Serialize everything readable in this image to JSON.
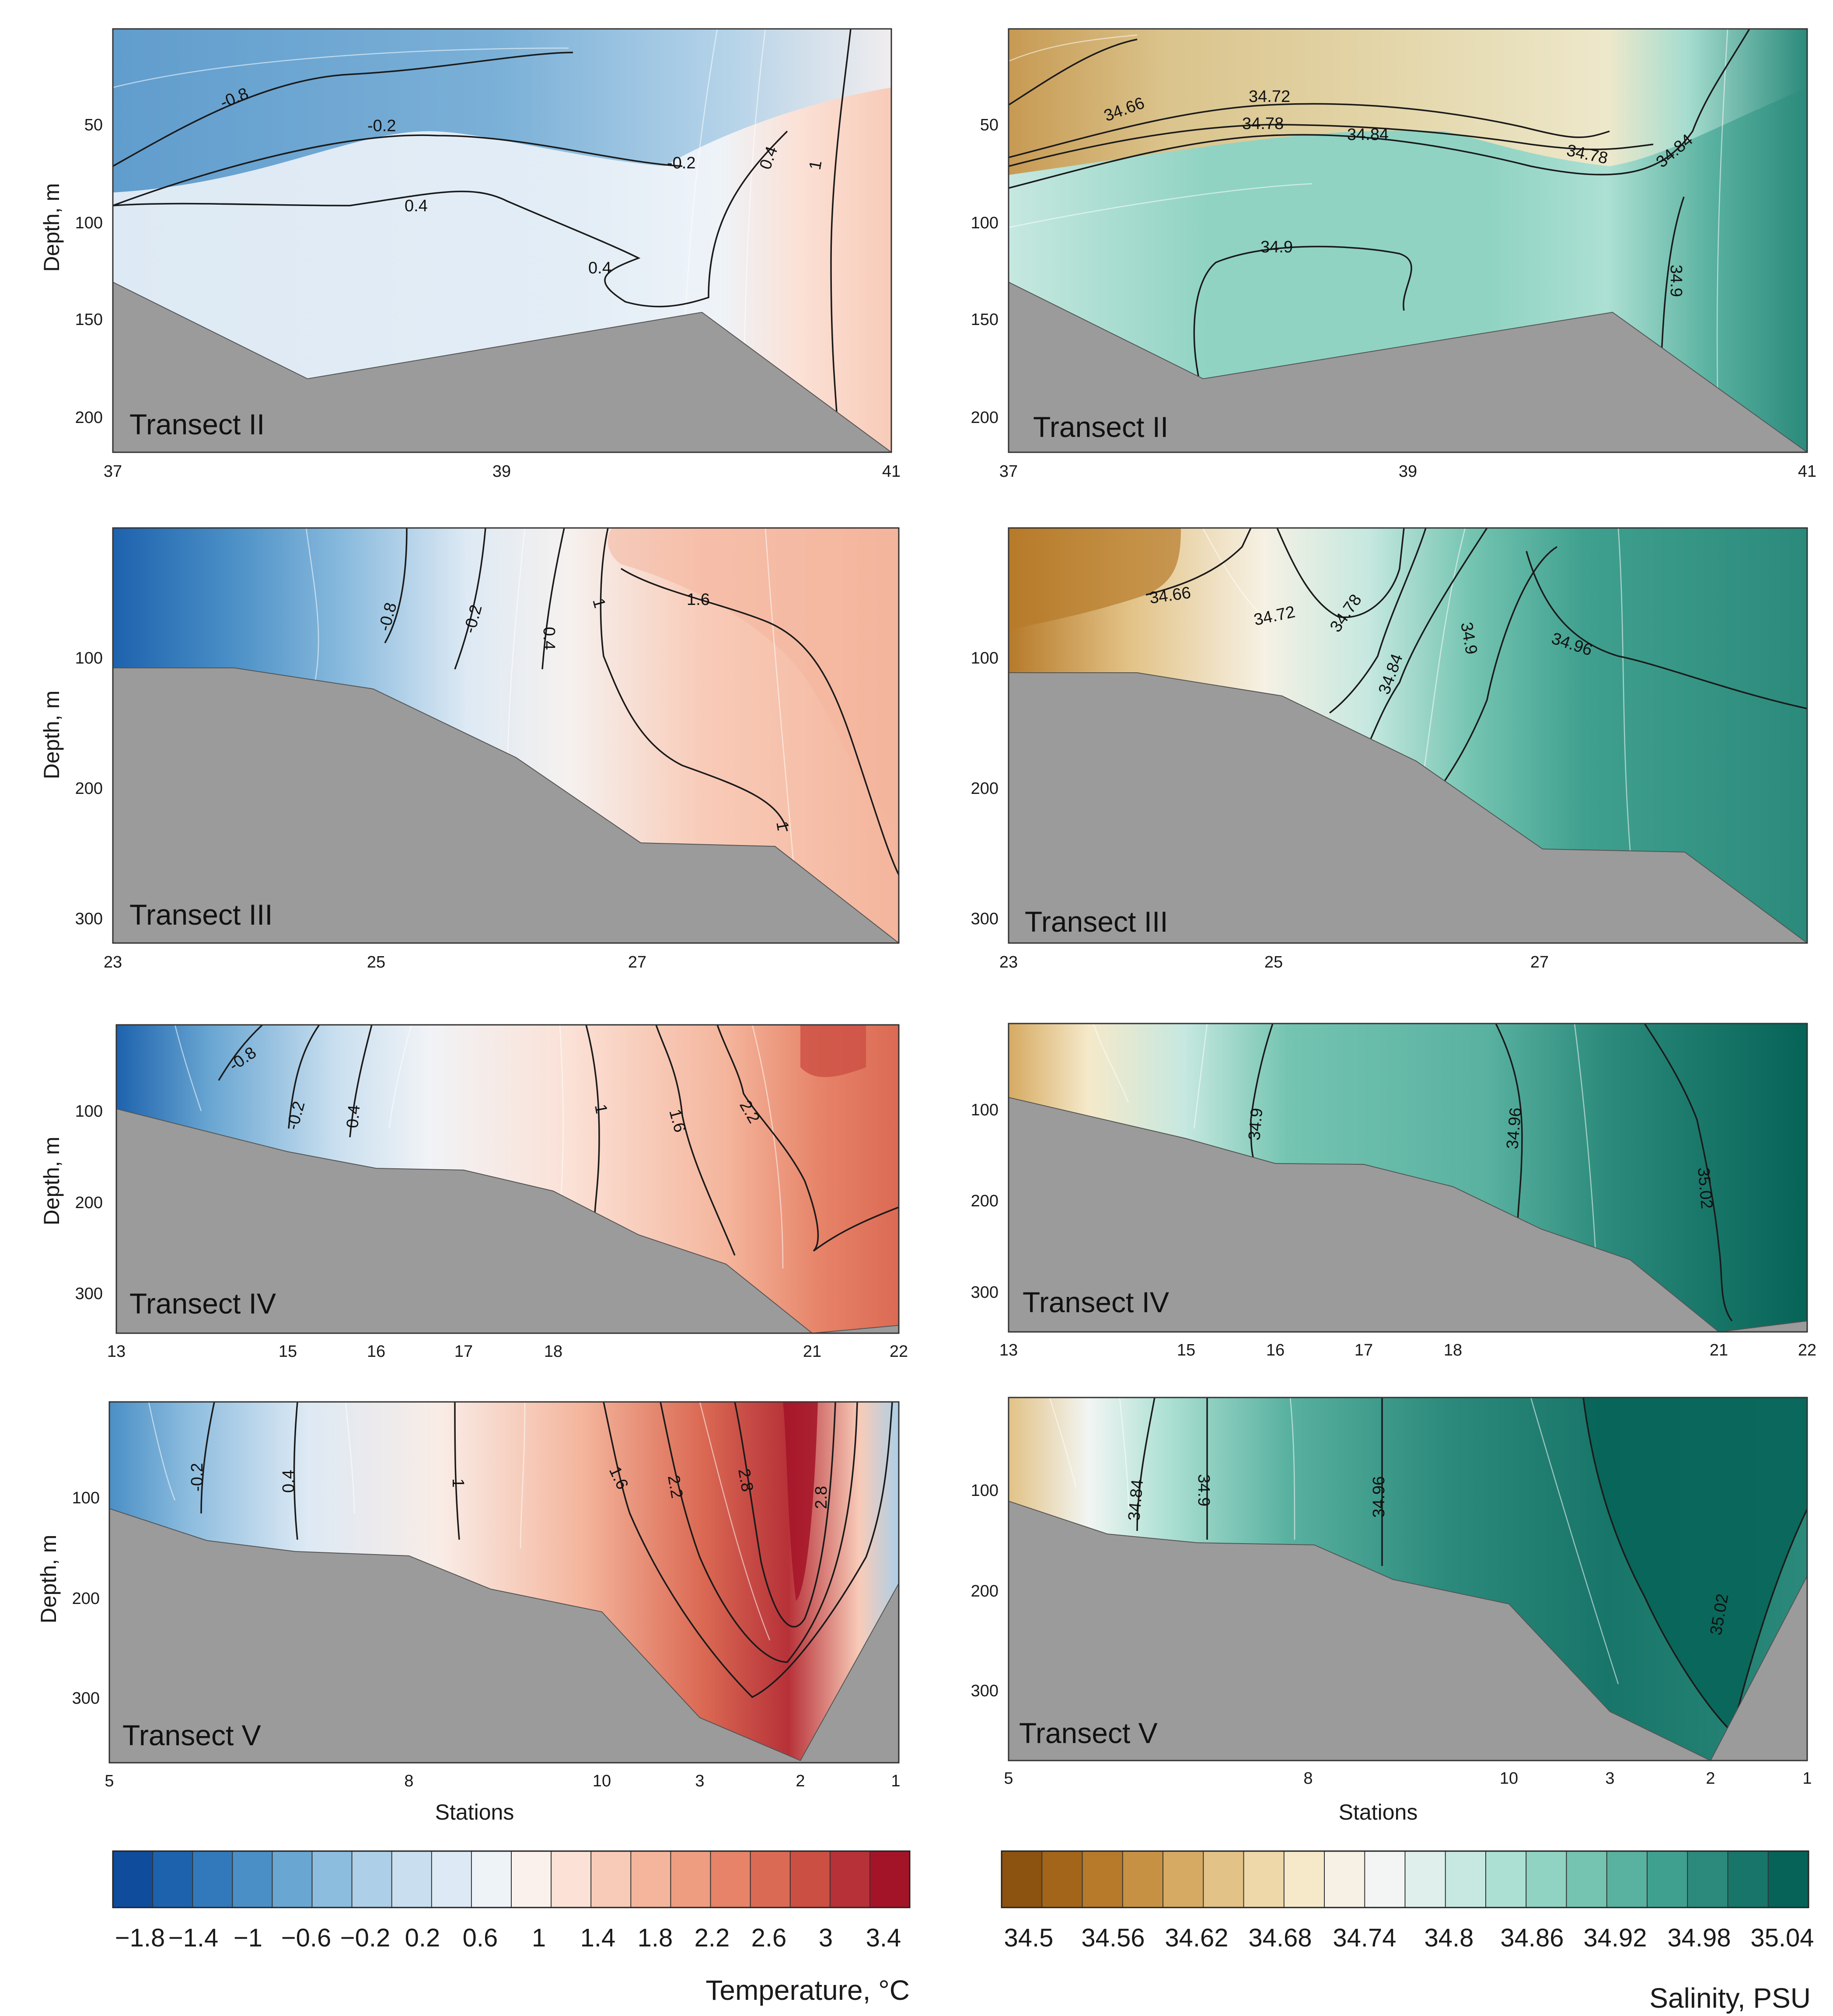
{
  "figure": {
    "type": "contour-section",
    "panels": 8
  },
  "colors": {
    "bathymetry": "#9b9b9b",
    "temperature_palette": [
      "#0f4c9c",
      "#1d62ad",
      "#3179bb",
      "#4a8fc6",
      "#69a6d2",
      "#8cbcde",
      "#adcfe7",
      "#c9dfef",
      "#dde9f4",
      "#eef3f8",
      "#fbf1ec",
      "#fbe1d6",
      "#f8cbb8",
      "#f4b59c",
      "#ee9d80",
      "#e68368",
      "#db6a54",
      "#cc4f43",
      "#b73138",
      "#a41428"
    ],
    "salinity_palette": [
      "#8c520f",
      "#a2651a",
      "#b67a2a",
      "#c79143",
      "#d6aa62",
      "#e2c286",
      "#eed8aa",
      "#f5e9ca",
      "#f6f1e4",
      "#f2f5f3",
      "#dff0ec",
      "#c6e8e0",
      "#ace0d3",
      "#90d3c3",
      "#74c4b1",
      "#59b1a0",
      "#40a08f",
      "#2b8a7b",
      "#187569",
      "#066357"
    ]
  },
  "chart_data": [
    {
      "id": "temp-II",
      "type": "contour",
      "variable": "Temperature",
      "transect": "Transect II",
      "ylabel": "Depth, m",
      "xlabel": "",
      "x_ticks": [
        "37",
        "39",
        "41"
      ],
      "y_ticks": [
        "50",
        "100",
        "150",
        "200"
      ],
      "ylim": [
        0,
        218
      ],
      "bottom_profile": [
        [
          37,
          130
        ],
        [
          38,
          180
        ],
        [
          40,
          146
        ],
        [
          41,
          220
        ]
      ],
      "contours": [
        {
          "label": "-0.8",
          "value": -0.8
        },
        {
          "label": "-0.2",
          "value": -0.2
        },
        {
          "label": "-0.2",
          "value": -0.2
        },
        {
          "label": "0.4",
          "value": 0.4
        },
        {
          "label": "0.4",
          "value": 0.4
        },
        {
          "label": "0.4",
          "value": 0.4
        },
        {
          "label": "1",
          "value": 1
        }
      ]
    },
    {
      "id": "sal-II",
      "type": "contour",
      "variable": "Salinity",
      "transect": "Transect II",
      "ylabel": "",
      "xlabel": "",
      "x_ticks": [
        "37",
        "39",
        "41"
      ],
      "y_ticks": [
        "50",
        "100",
        "150",
        "200"
      ],
      "ylim": [
        0,
        218
      ],
      "bottom_profile": [
        [
          37,
          130
        ],
        [
          38,
          180
        ],
        [
          40,
          146
        ],
        [
          41,
          220
        ]
      ],
      "contours": [
        {
          "label": "34.66",
          "value": 34.66
        },
        {
          "label": "34.72",
          "value": 34.72
        },
        {
          "label": "34.78",
          "value": 34.78
        },
        {
          "label": "34.84",
          "value": 34.84
        },
        {
          "label": "34.78",
          "value": 34.78
        },
        {
          "label": "34.84",
          "value": 34.84
        },
        {
          "label": "34.9",
          "value": 34.9
        },
        {
          "label": "34.9",
          "value": 34.9
        }
      ]
    },
    {
      "id": "temp-III",
      "type": "contour",
      "variable": "Temperature",
      "transect": "Transect III",
      "ylabel": "Depth, m",
      "xlabel": "",
      "x_ticks": [
        "23",
        "25",
        "27"
      ],
      "y_ticks": [
        "100",
        "200",
        "300"
      ],
      "ylim": [
        0,
        318
      ],
      "bottom_profile": [
        [
          23,
          110
        ],
        [
          24,
          110
        ],
        [
          25,
          125
        ],
        [
          26,
          175
        ],
        [
          27,
          240
        ],
        [
          28,
          243
        ],
        [
          29,
          318
        ]
      ],
      "contours": [
        {
          "label": "-0.8",
          "value": -0.8
        },
        {
          "label": "-0.2",
          "value": -0.2
        },
        {
          "label": "0.4",
          "value": 0.4
        },
        {
          "label": "1",
          "value": 1
        },
        {
          "label": "1.6",
          "value": 1.6
        },
        {
          "label": "1",
          "value": 1
        }
      ]
    },
    {
      "id": "sal-III",
      "type": "contour",
      "variable": "Salinity",
      "transect": "Transect III",
      "ylabel": "",
      "xlabel": "",
      "x_ticks": [
        "23",
        "25",
        "27"
      ],
      "y_ticks": [
        "100",
        "200",
        "300"
      ],
      "ylim": [
        0,
        318
      ],
      "bottom_profile": [
        [
          23,
          110
        ],
        [
          24,
          110
        ],
        [
          25,
          125
        ],
        [
          26,
          175
        ],
        [
          27,
          240
        ],
        [
          28,
          243
        ],
        [
          29,
          318
        ]
      ],
      "contours": [
        {
          "label": "34.66",
          "value": 34.66
        },
        {
          "label": "34.72",
          "value": 34.72
        },
        {
          "label": "34.78",
          "value": 34.78
        },
        {
          "label": "34.84",
          "value": 34.84
        },
        {
          "label": "34.9",
          "value": 34.9
        },
        {
          "label": "34.96",
          "value": 34.96
        }
      ]
    },
    {
      "id": "temp-IV",
      "type": "contour",
      "variable": "Temperature",
      "transect": "Transect IV",
      "ylabel": "Depth, m",
      "xlabel": "",
      "x_ticks": [
        "13",
        "15",
        "16",
        "17",
        "18",
        "21",
        "22"
      ],
      "y_ticks": [
        "100",
        "200",
        "300"
      ],
      "ylim": [
        0,
        338
      ],
      "bottom_profile": [
        [
          13,
          90
        ],
        [
          15,
          130
        ],
        [
          16,
          160
        ],
        [
          17,
          160
        ],
        [
          18,
          185
        ],
        [
          19,
          235
        ],
        [
          20,
          275
        ],
        [
          21,
          338
        ],
        [
          22,
          328
        ]
      ],
      "contours": [
        {
          "label": "-0.8",
          "value": -0.8
        },
        {
          "label": "-0.2",
          "value": -0.2
        },
        {
          "label": "0.4",
          "value": 0.4
        },
        {
          "label": "1",
          "value": 1
        },
        {
          "label": "1.6",
          "value": 1.6
        },
        {
          "label": "2.2",
          "value": 2.2
        }
      ]
    },
    {
      "id": "sal-IV",
      "type": "contour",
      "variable": "Salinity",
      "transect": "Transect IV",
      "ylabel": "",
      "xlabel": "",
      "x_ticks": [
        "13",
        "15",
        "16",
        "17",
        "18",
        "21",
        "22"
      ],
      "y_ticks": [
        "100",
        "200",
        "300"
      ],
      "ylim": [
        0,
        338
      ],
      "bottom_profile": [
        [
          13,
          90
        ],
        [
          15,
          130
        ],
        [
          16,
          160
        ],
        [
          17,
          160
        ],
        [
          18,
          185
        ],
        [
          19,
          235
        ],
        [
          20,
          275
        ],
        [
          21,
          338
        ],
        [
          22,
          328
        ]
      ],
      "contours": [
        {
          "label": "34.9",
          "value": 34.9
        },
        {
          "label": "34.96",
          "value": 34.96
        },
        {
          "label": "35.02",
          "value": 35.02
        }
      ]
    },
    {
      "id": "temp-V",
      "type": "contour",
      "variable": "Temperature",
      "transect": "Transect V",
      "ylabel": "Depth, m",
      "xlabel": "Stations",
      "x_ticks": [
        "5",
        "8",
        "10",
        "3",
        "2",
        "1"
      ],
      "y_ticks": [
        "100",
        "200",
        "300"
      ],
      "ylim": [
        0,
        362
      ],
      "bottom_profile": [
        [
          5,
          108
        ],
        [
          8,
          157
        ],
        [
          10,
          215
        ],
        [
          3,
          318
        ],
        [
          2,
          362
        ],
        [
          1,
          178
        ]
      ],
      "contours": [
        {
          "label": "-0.2",
          "value": -0.2
        },
        {
          "label": "0.4",
          "value": 0.4
        },
        {
          "label": "1",
          "value": 1
        },
        {
          "label": "1.6",
          "value": 1.6
        },
        {
          "label": "2.2",
          "value": 2.2
        },
        {
          "label": "2.8",
          "value": 2.8
        },
        {
          "label": "2.8",
          "value": 2.8
        }
      ]
    },
    {
      "id": "sal-V",
      "type": "contour",
      "variable": "Salinity",
      "transect": "Transect V",
      "ylabel": "",
      "xlabel": "Stations",
      "x_ticks": [
        "5",
        "8",
        "10",
        "3",
        "2",
        "1"
      ],
      "y_ticks": [
        "100",
        "200",
        "300"
      ],
      "ylim": [
        0,
        362
      ],
      "bottom_profile": [
        [
          5,
          108
        ],
        [
          8,
          157
        ],
        [
          10,
          215
        ],
        [
          3,
          318
        ],
        [
          2,
          362
        ],
        [
          1,
          178
        ]
      ],
      "contours": [
        {
          "label": "34.84",
          "value": 34.84
        },
        {
          "label": "34.9",
          "value": 34.9
        },
        {
          "label": "34.96",
          "value": 34.96
        },
        {
          "label": "35.02",
          "value": 35.02
        }
      ]
    }
  ],
  "colorbars": {
    "temperature": {
      "title": "Temperature, °C",
      "tick_labels": [
        "−1.8",
        "−1.4",
        "−1",
        "−0.6",
        "−0.2",
        "0.2",
        "0.6",
        "1",
        "1.4",
        "1.8",
        "2.2",
        "2.6",
        "3",
        "3.4"
      ],
      "range": [
        -2.0,
        3.6
      ]
    },
    "salinity": {
      "title": "Salinity, PSU",
      "tick_labels": [
        "34.5",
        "34.56",
        "34.62",
        "34.68",
        "34.74",
        "34.8",
        "34.86",
        "34.92",
        "34.98",
        "35.04"
      ],
      "range": [
        34.47,
        35.07
      ]
    }
  }
}
